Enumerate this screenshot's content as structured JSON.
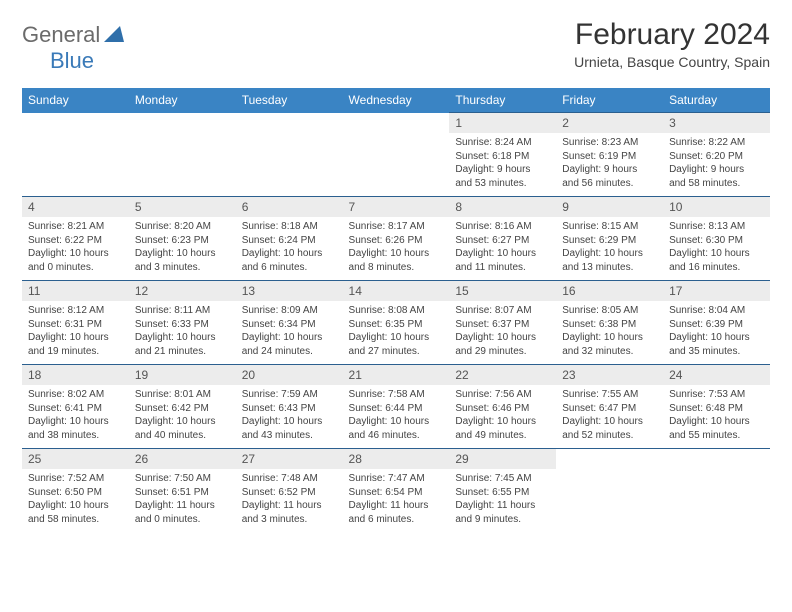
{
  "logo": {
    "part1": "General",
    "part2": "Blue"
  },
  "title": "February 2024",
  "subtitle": "Urnieta, Basque Country, Spain",
  "colors": {
    "header_bg": "#3a84c4",
    "header_text": "#ffffff",
    "daynum_bg": "#ececec",
    "row_border": "#2b5f8f",
    "logo_gray": "#6b6b6b",
    "logo_blue": "#3a7ab8"
  },
  "weekdays": [
    "Sunday",
    "Monday",
    "Tuesday",
    "Wednesday",
    "Thursday",
    "Friday",
    "Saturday"
  ],
  "weeks": [
    [
      null,
      null,
      null,
      null,
      {
        "n": "1",
        "sr": "Sunrise: 8:24 AM",
        "ss": "Sunset: 6:18 PM",
        "d1": "Daylight: 9 hours",
        "d2": "and 53 minutes."
      },
      {
        "n": "2",
        "sr": "Sunrise: 8:23 AM",
        "ss": "Sunset: 6:19 PM",
        "d1": "Daylight: 9 hours",
        "d2": "and 56 minutes."
      },
      {
        "n": "3",
        "sr": "Sunrise: 8:22 AM",
        "ss": "Sunset: 6:20 PM",
        "d1": "Daylight: 9 hours",
        "d2": "and 58 minutes."
      }
    ],
    [
      {
        "n": "4",
        "sr": "Sunrise: 8:21 AM",
        "ss": "Sunset: 6:22 PM",
        "d1": "Daylight: 10 hours",
        "d2": "and 0 minutes."
      },
      {
        "n": "5",
        "sr": "Sunrise: 8:20 AM",
        "ss": "Sunset: 6:23 PM",
        "d1": "Daylight: 10 hours",
        "d2": "and 3 minutes."
      },
      {
        "n": "6",
        "sr": "Sunrise: 8:18 AM",
        "ss": "Sunset: 6:24 PM",
        "d1": "Daylight: 10 hours",
        "d2": "and 6 minutes."
      },
      {
        "n": "7",
        "sr": "Sunrise: 8:17 AM",
        "ss": "Sunset: 6:26 PM",
        "d1": "Daylight: 10 hours",
        "d2": "and 8 minutes."
      },
      {
        "n": "8",
        "sr": "Sunrise: 8:16 AM",
        "ss": "Sunset: 6:27 PM",
        "d1": "Daylight: 10 hours",
        "d2": "and 11 minutes."
      },
      {
        "n": "9",
        "sr": "Sunrise: 8:15 AM",
        "ss": "Sunset: 6:29 PM",
        "d1": "Daylight: 10 hours",
        "d2": "and 13 minutes."
      },
      {
        "n": "10",
        "sr": "Sunrise: 8:13 AM",
        "ss": "Sunset: 6:30 PM",
        "d1": "Daylight: 10 hours",
        "d2": "and 16 minutes."
      }
    ],
    [
      {
        "n": "11",
        "sr": "Sunrise: 8:12 AM",
        "ss": "Sunset: 6:31 PM",
        "d1": "Daylight: 10 hours",
        "d2": "and 19 minutes."
      },
      {
        "n": "12",
        "sr": "Sunrise: 8:11 AM",
        "ss": "Sunset: 6:33 PM",
        "d1": "Daylight: 10 hours",
        "d2": "and 21 minutes."
      },
      {
        "n": "13",
        "sr": "Sunrise: 8:09 AM",
        "ss": "Sunset: 6:34 PM",
        "d1": "Daylight: 10 hours",
        "d2": "and 24 minutes."
      },
      {
        "n": "14",
        "sr": "Sunrise: 8:08 AM",
        "ss": "Sunset: 6:35 PM",
        "d1": "Daylight: 10 hours",
        "d2": "and 27 minutes."
      },
      {
        "n": "15",
        "sr": "Sunrise: 8:07 AM",
        "ss": "Sunset: 6:37 PM",
        "d1": "Daylight: 10 hours",
        "d2": "and 29 minutes."
      },
      {
        "n": "16",
        "sr": "Sunrise: 8:05 AM",
        "ss": "Sunset: 6:38 PM",
        "d1": "Daylight: 10 hours",
        "d2": "and 32 minutes."
      },
      {
        "n": "17",
        "sr": "Sunrise: 8:04 AM",
        "ss": "Sunset: 6:39 PM",
        "d1": "Daylight: 10 hours",
        "d2": "and 35 minutes."
      }
    ],
    [
      {
        "n": "18",
        "sr": "Sunrise: 8:02 AM",
        "ss": "Sunset: 6:41 PM",
        "d1": "Daylight: 10 hours",
        "d2": "and 38 minutes."
      },
      {
        "n": "19",
        "sr": "Sunrise: 8:01 AM",
        "ss": "Sunset: 6:42 PM",
        "d1": "Daylight: 10 hours",
        "d2": "and 40 minutes."
      },
      {
        "n": "20",
        "sr": "Sunrise: 7:59 AM",
        "ss": "Sunset: 6:43 PM",
        "d1": "Daylight: 10 hours",
        "d2": "and 43 minutes."
      },
      {
        "n": "21",
        "sr": "Sunrise: 7:58 AM",
        "ss": "Sunset: 6:44 PM",
        "d1": "Daylight: 10 hours",
        "d2": "and 46 minutes."
      },
      {
        "n": "22",
        "sr": "Sunrise: 7:56 AM",
        "ss": "Sunset: 6:46 PM",
        "d1": "Daylight: 10 hours",
        "d2": "and 49 minutes."
      },
      {
        "n": "23",
        "sr": "Sunrise: 7:55 AM",
        "ss": "Sunset: 6:47 PM",
        "d1": "Daylight: 10 hours",
        "d2": "and 52 minutes."
      },
      {
        "n": "24",
        "sr": "Sunrise: 7:53 AM",
        "ss": "Sunset: 6:48 PM",
        "d1": "Daylight: 10 hours",
        "d2": "and 55 minutes."
      }
    ],
    [
      {
        "n": "25",
        "sr": "Sunrise: 7:52 AM",
        "ss": "Sunset: 6:50 PM",
        "d1": "Daylight: 10 hours",
        "d2": "and 58 minutes."
      },
      {
        "n": "26",
        "sr": "Sunrise: 7:50 AM",
        "ss": "Sunset: 6:51 PM",
        "d1": "Daylight: 11 hours",
        "d2": "and 0 minutes."
      },
      {
        "n": "27",
        "sr": "Sunrise: 7:48 AM",
        "ss": "Sunset: 6:52 PM",
        "d1": "Daylight: 11 hours",
        "d2": "and 3 minutes."
      },
      {
        "n": "28",
        "sr": "Sunrise: 7:47 AM",
        "ss": "Sunset: 6:54 PM",
        "d1": "Daylight: 11 hours",
        "d2": "and 6 minutes."
      },
      {
        "n": "29",
        "sr": "Sunrise: 7:45 AM",
        "ss": "Sunset: 6:55 PM",
        "d1": "Daylight: 11 hours",
        "d2": "and 9 minutes."
      },
      null,
      null
    ]
  ]
}
